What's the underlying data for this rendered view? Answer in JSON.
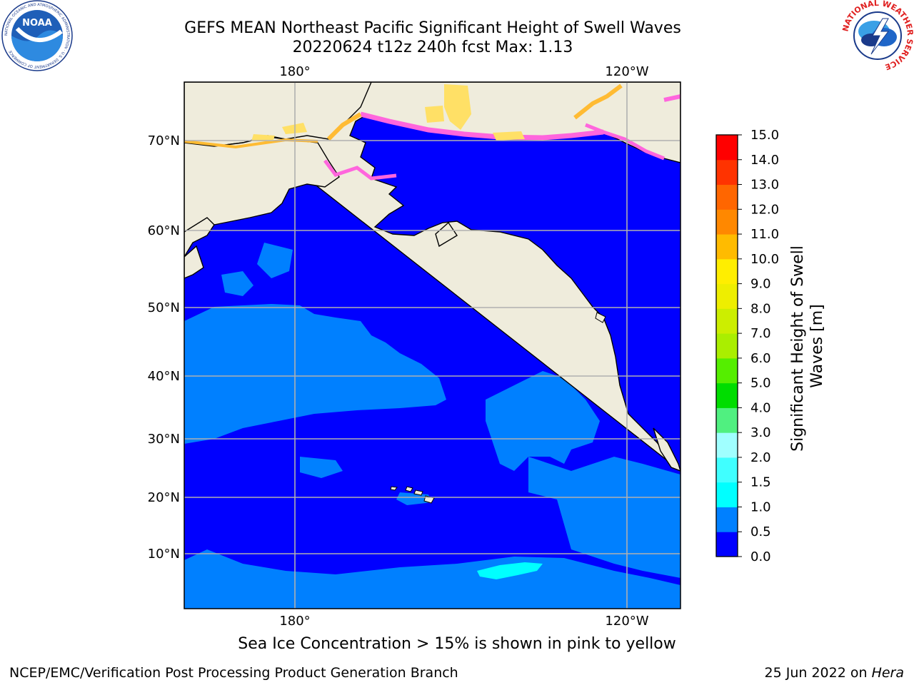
{
  "title": {
    "line1": "GEFS MEAN Northeast Pacific Significant Height of Swell Waves",
    "line2": "20220624 t12z 240h fcst   Max: 1.13"
  },
  "map": {
    "lon_labels_top": [
      "180°",
      "120°W"
    ],
    "lon_labels_bottom": [
      "180°",
      "120°W"
    ],
    "lat_labels": [
      "70°N",
      "60°N",
      "50°N",
      "40°N",
      "30°N",
      "20°N",
      "10°N"
    ],
    "colors": {
      "ocean_low": "#0000ff",
      "ocean_mid": "#0080ff",
      "ocean_high": "#00ffff",
      "land": "#efecdc",
      "ice_pink": "#ff66dd",
      "ice_orange": "#ffbb33",
      "ice_yellow": "#ffe066",
      "grid": "#b0b0b0"
    }
  },
  "colorbar": {
    "label_line1": "Significant Height of Swell",
    "label_line2": "Waves [m]",
    "ticks": [
      "0.0",
      "0.5",
      "1.0",
      "1.5",
      "2.0",
      "3.0",
      "4.0",
      "5.0",
      "6.0",
      "7.0",
      "8.0",
      "9.0",
      "10.0",
      "11.0",
      "12.0",
      "13.0",
      "14.0",
      "15.0"
    ],
    "colors": [
      "#0000ff",
      "#0080ff",
      "#00ffff",
      "#40ffff",
      "#a0ffff",
      "#50f080",
      "#00dd00",
      "#55ee00",
      "#aaee00",
      "#ccee00",
      "#eeee00",
      "#ffee00",
      "#ffbb00",
      "#ff8800",
      "#ff6600",
      "#ff3300",
      "#ff0000"
    ]
  },
  "caption": "Sea Ice Concentration > 15% is shown in pink to yellow",
  "footer": {
    "left": "NCEP/EMC/Verification Post Processing Product Generation Branch",
    "right_prefix": "25 Jun 2022 on ",
    "right_host": "Hera"
  },
  "logos": {
    "noaa_text": "NOAA",
    "noaa_ring_text": "NATIONAL OCEANIC AND ATMOSPHERIC ADMINISTRATION · U.S. DEPARTMENT OF COMMERCE",
    "nws_ring_text": "NATIONAL WEATHER SERVICE"
  }
}
